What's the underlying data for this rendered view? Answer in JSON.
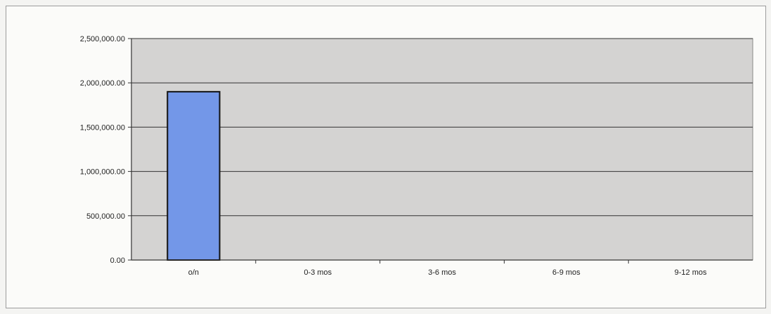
{
  "chart_data": {
    "type": "bar",
    "categories": [
      "o/n",
      "0-3 mos",
      "3-6 mos",
      "6-9 mos",
      "9-12 mos"
    ],
    "values": [
      1900000,
      0,
      0,
      0,
      0
    ],
    "y_tick_labels": [
      "0.00",
      "500,000.00",
      "1,000,000.00",
      "1,500,000.00",
      "2,000,000.00",
      "2,500,000.00"
    ],
    "ylim": [
      0,
      2500000
    ],
    "y_ticks": [
      0,
      500000,
      1000000,
      1500000,
      2000000,
      2500000
    ],
    "grid": true,
    "legend": "none",
    "colors": {
      "bar": "#7397e8",
      "bar_border": "#111111",
      "plot_area": "#d4d3d2",
      "gridline": "#333333"
    }
  }
}
